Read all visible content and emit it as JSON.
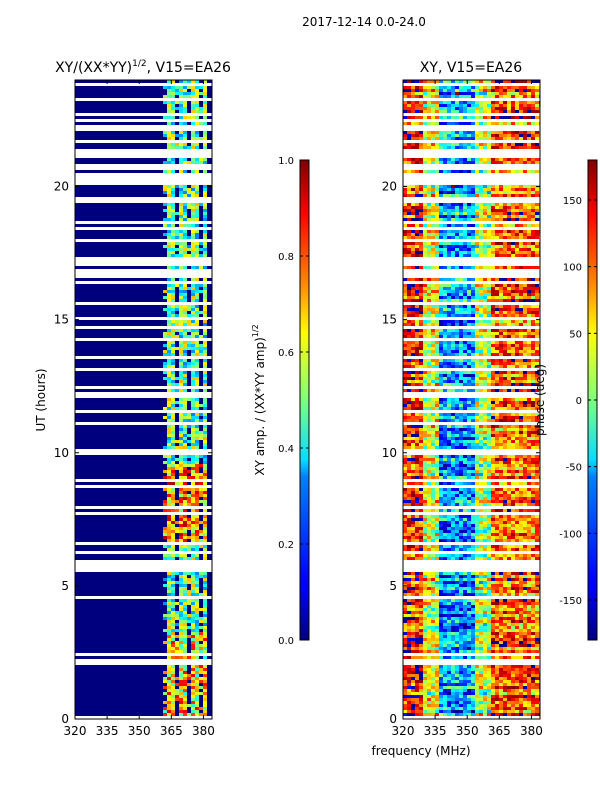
{
  "figure": {
    "suptitle": "2017-12-14 0.0-24.0",
    "xlabel": "frequency (MHz)"
  },
  "chart_data": [
    {
      "type": "heatmap",
      "title": "XY/(XX*YY)",
      "title_exp": "1/2",
      "title_suffix": ", V15=EA26",
      "ylabel": "UT (hours)",
      "xlim": [
        320,
        384
      ],
      "ylim": [
        0,
        24
      ],
      "x_ticks": [
        "320",
        "335",
        "350",
        "365",
        "380"
      ],
      "y_ticks": [
        "0",
        "5",
        "10",
        "15",
        "20"
      ],
      "colorbar": {
        "label": "XY amp. / (XX*YY amp)",
        "label_exp": "1/2",
        "range": [
          0.0,
          1.0
        ],
        "ticks": [
          "0.0",
          "0.2",
          "0.4",
          "0.6",
          "0.8",
          "1.0"
        ]
      },
      "summary": "Mostly ~0.0 (dark blue) below 360 MHz; patchy 0.3-0.9 values in 360-380 MHz columns; horizontal white gaps indicate missing data."
    },
    {
      "type": "heatmap",
      "title": "XY, V15=EA26",
      "xlim": [
        320,
        384
      ],
      "ylim": [
        0,
        24
      ],
      "x_ticks": [
        "320",
        "335",
        "350",
        "365",
        "380"
      ],
      "y_ticks": [
        "0",
        "5",
        "10",
        "15",
        "20"
      ],
      "colorbar": {
        "label": "phase (deg)",
        "range": [
          -180,
          180
        ],
        "ticks": [
          "-150",
          "-100",
          "-50",
          "0",
          "50",
          "100",
          "150"
        ]
      },
      "summary": "Phase varies with time and frequency; red near 320-330 MHz, blue/cyan near 335-350 MHz, red/yellow near 355-385 MHz; white gaps indicate missing data."
    }
  ]
}
